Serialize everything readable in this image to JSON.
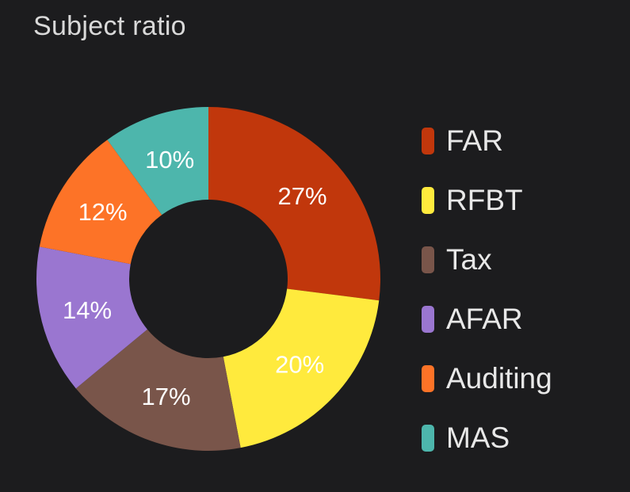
{
  "card": {
    "title": "Subject ratio"
  },
  "chart_data": {
    "type": "pie",
    "variant": "donut",
    "title": "Subject ratio",
    "categories": [
      "FAR",
      "RFBT",
      "Tax",
      "AFAR",
      "Auditing",
      "MAS"
    ],
    "values": [
      27,
      20,
      17,
      14,
      12,
      10
    ],
    "value_labels": [
      "27%",
      "20%",
      "17%",
      "14%",
      "12%",
      "10%"
    ],
    "colors": [
      "#c1370c",
      "#ffea3d",
      "#79554a",
      "#9a76d0",
      "#fd7327",
      "#4db6ac"
    ],
    "legend_placement": "right"
  }
}
